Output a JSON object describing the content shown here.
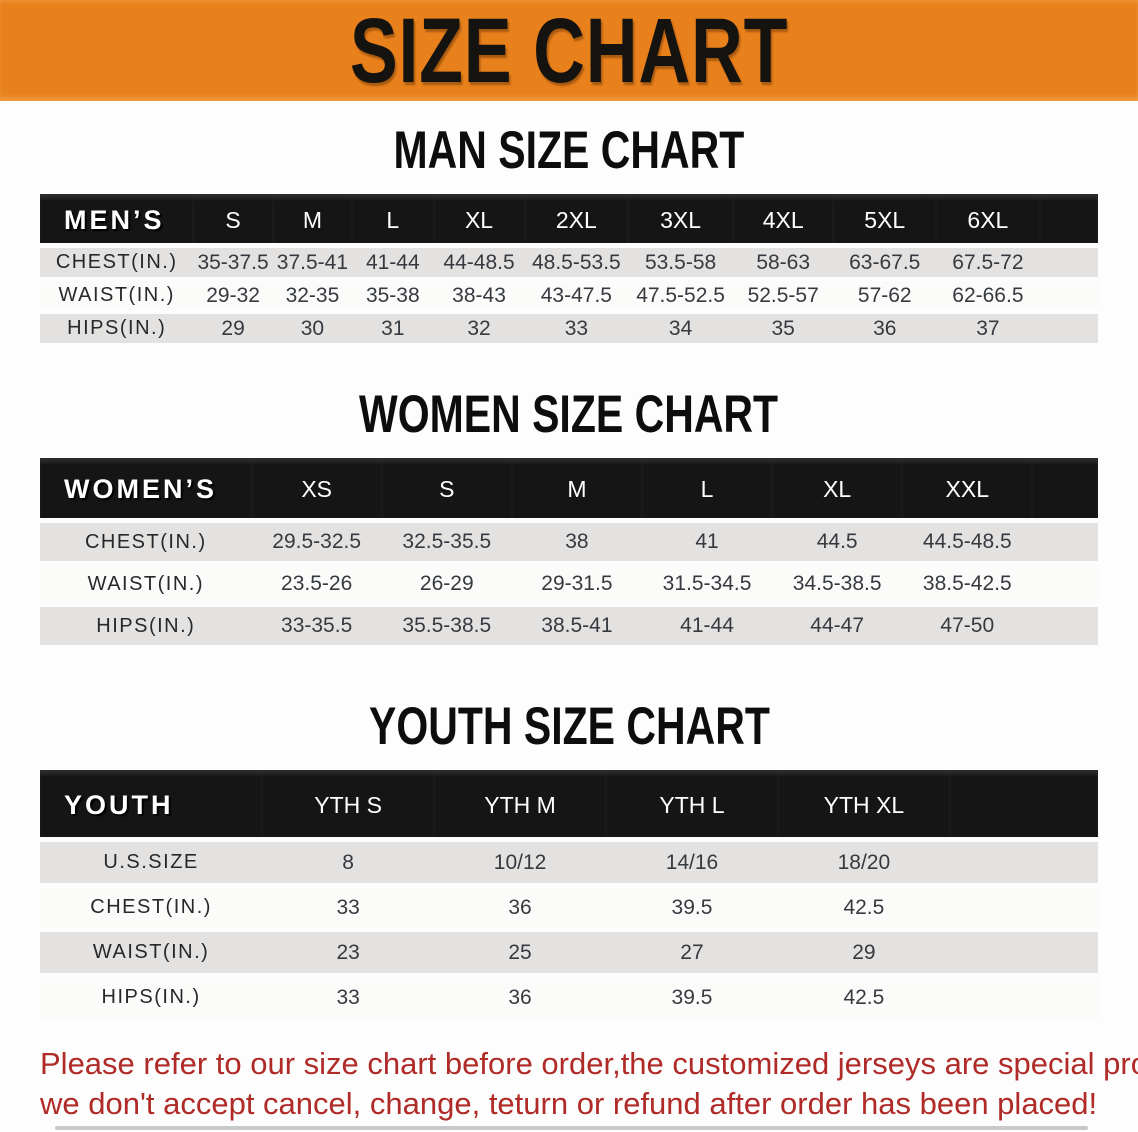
{
  "banner": {
    "title": "SIZE CHART",
    "bg_color": "#E8801C",
    "text_color": "#151310"
  },
  "sections": [
    {
      "heading": "MAN SIZE CHART",
      "table": {
        "header_label": "MEN’S",
        "columns": [
          "S",
          "M",
          "L",
          "XL",
          "2XL",
          "3XL",
          "4XL",
          "5XL",
          "6XL"
        ],
        "rows": [
          {
            "label": "CHEST(IN.)",
            "values": [
              "35-37.5",
              "37.5-41",
              "41-44",
              "44-48.5",
              "48.5-53.5",
              "53.5-58",
              "58-63",
              "63-67.5",
              "67.5-72"
            ]
          },
          {
            "label": "WAIST(IN.)",
            "values": [
              "29-32",
              "32-35",
              "35-38",
              "38-43",
              "43-47.5",
              "47.5-52.5",
              "52.5-57",
              "57-62",
              "62-66.5"
            ]
          },
          {
            "label": "HIPS(IN.)",
            "values": [
              "29",
              "30",
              "31",
              "32",
              "33",
              "34",
              "35",
              "36",
              "37"
            ]
          }
        ]
      }
    },
    {
      "heading": "WOMEN SIZE CHART",
      "table": {
        "header_label": "WOMEN’S",
        "columns": [
          "XS",
          "S",
          "M",
          "L",
          "XL",
          "XXL"
        ],
        "rows": [
          {
            "label": "CHEST(IN.)",
            "values": [
              "29.5-32.5",
              "32.5-35.5",
              "38",
              "41",
              "44.5",
              "44.5-48.5"
            ]
          },
          {
            "label": "WAIST(IN.)",
            "values": [
              "23.5-26",
              "26-29",
              "29-31.5",
              "31.5-34.5",
              "34.5-38.5",
              "38.5-42.5"
            ]
          },
          {
            "label": "HIPS(IN.)",
            "values": [
              "33-35.5",
              "35.5-38.5",
              "38.5-41",
              "41-44",
              "44-47",
              "47-50"
            ]
          }
        ]
      }
    },
    {
      "heading": "YOUTH SIZE CHART",
      "table": {
        "header_label": "YOUTH",
        "columns": [
          "YTH S",
          "YTH M",
          "YTH L",
          "YTH XL"
        ],
        "rows": [
          {
            "label": "U.S.SIZE",
            "values": [
              "8",
              "10/12",
              "14/16",
              "18/20"
            ]
          },
          {
            "label": "CHEST(IN.)",
            "values": [
              "33",
              "36",
              "39.5",
              "42.5"
            ]
          },
          {
            "label": "WAIST(IN.)",
            "values": [
              "23",
              "25",
              "27",
              "29"
            ]
          },
          {
            "label": "HIPS(IN.)",
            "values": [
              "33",
              "36",
              "39.5",
              "42.5"
            ]
          }
        ]
      }
    }
  ],
  "footnote": {
    "line1": "Please refer to our size chart before order,the customized jerseys are special products,",
    "line2": "we don't accept cancel, change, teturn or refund after order has been placed!",
    "text_color": "#B02B27"
  },
  "colors": {
    "banner_orange": "#E8801C",
    "table_header_black": "#151515",
    "row_gray": "#E3E2E0",
    "row_white": "#FBFBFA",
    "value_text": "#363A40"
  }
}
